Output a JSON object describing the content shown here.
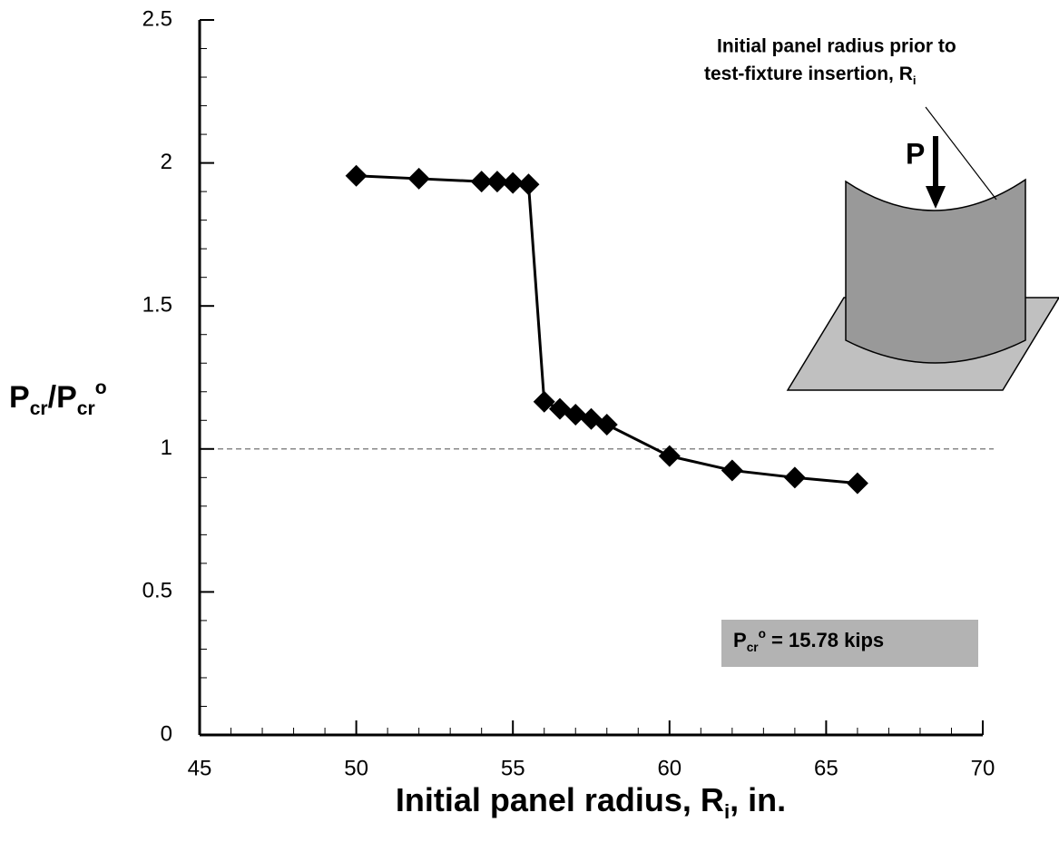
{
  "chart_data": {
    "type": "line",
    "x_label": [
      "Initial panel radius, R",
      "i",
      ", in."
    ],
    "y_label": [
      "P",
      "cr",
      "/P",
      "cr",
      "o"
    ],
    "annotation": [
      "Initial panel radius prior to",
      "test-fixture insertion, R",
      "i"
    ],
    "load_label": "P",
    "note": [
      "P",
      "cr",
      "o",
      " = 15.78 kips"
    ],
    "x": [
      50,
      52,
      54,
      54.5,
      55,
      55.5,
      56,
      56.5,
      57,
      57.5,
      58,
      60,
      62,
      64,
      66
    ],
    "series": [
      {
        "color": "#000000",
        "values": [
          1.955,
          1.945,
          1.935,
          1.935,
          1.93,
          1.925,
          1.165,
          1.14,
          1.12,
          1.105,
          1.085,
          0.975,
          0.925,
          0.9,
          0.88
        ]
      }
    ],
    "reference_line": 1,
    "xlim": [
      45,
      70
    ],
    "xticks": [
      45,
      50,
      55,
      60,
      65,
      70
    ],
    "ylim": [
      0,
      2.5
    ],
    "yticks": [
      0,
      0.5,
      1,
      1.5,
      2,
      2.5
    ]
  }
}
